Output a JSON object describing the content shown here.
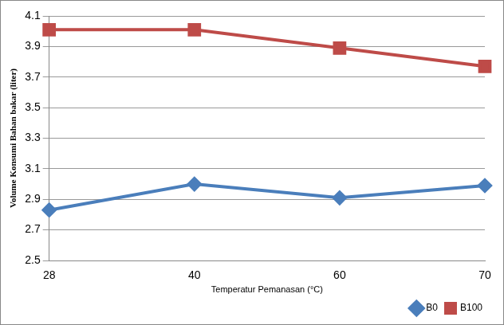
{
  "chart_data": {
    "type": "line",
    "x_label": "Temperatur Pemanasan (°C)",
    "y_label": "Volume Konsumi Bahan bakar (liter)",
    "categories": [
      "28",
      "40",
      "60",
      "70"
    ],
    "series": [
      {
        "name": "B0",
        "color": "#4a7ebb",
        "marker": "diamond",
        "values": [
          2.83,
          3.0,
          2.91,
          2.99
        ]
      },
      {
        "name": "B100",
        "color": "#be4b48",
        "marker": "square",
        "values": [
          4.01,
          4.01,
          3.89,
          3.77
        ]
      }
    ],
    "ylim": [
      2.5,
      4.1
    ],
    "yticks": [
      2.5,
      2.7,
      2.9,
      3.1,
      3.3,
      3.5,
      3.7,
      3.9,
      4.1
    ],
    "grid": true,
    "legend": "bottom"
  }
}
